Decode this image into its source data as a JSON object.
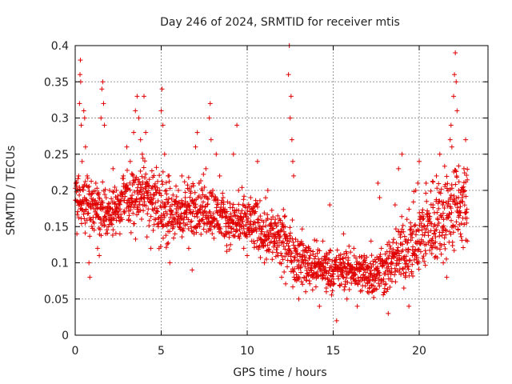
{
  "chart_data": {
    "type": "scatter",
    "title": "Day 246 of 2024, SRMTID for receiver mtis",
    "xlabel": "GPS time / hours",
    "ylabel": "SRMTID / TECUs",
    "xlim": [
      0,
      24
    ],
    "ylim": [
      0,
      0.4
    ],
    "x_ticks": [
      0,
      5,
      10,
      15,
      20
    ],
    "x_tick_labels": [
      "0",
      "5",
      "10",
      "15",
      "20"
    ],
    "y_ticks": [
      0,
      0.05,
      0.1,
      0.15,
      0.2,
      0.25,
      0.3,
      0.35,
      0.4
    ],
    "y_tick_labels": [
      "0",
      "0.05",
      "0.1",
      "0.15",
      "0.2",
      "0.25",
      "0.3",
      "0.35",
      "0.4"
    ],
    "grid": true,
    "marker": "plus",
    "color": "#e00000",
    "series": [
      {
        "name": "SRMTID",
        "envelope": {
          "x": [
            0.0,
            1.0,
            2.0,
            3.0,
            4.0,
            5.0,
            6.0,
            7.0,
            8.0,
            9.0,
            10.0,
            11.0,
            12.0,
            13.0,
            14.0,
            15.0,
            16.0,
            17.0,
            18.0,
            19.0,
            20.0,
            21.0,
            22.0,
            22.8
          ],
          "low": [
            0.13,
            0.12,
            0.12,
            0.13,
            0.13,
            0.1,
            0.11,
            0.12,
            0.12,
            0.11,
            0.1,
            0.09,
            0.07,
            0.05,
            0.05,
            0.05,
            0.05,
            0.04,
            0.04,
            0.05,
            0.05,
            0.07,
            0.08,
            0.1
          ],
          "high": [
            0.24,
            0.23,
            0.22,
            0.24,
            0.27,
            0.25,
            0.22,
            0.24,
            0.22,
            0.2,
            0.21,
            0.2,
            0.19,
            0.16,
            0.14,
            0.13,
            0.13,
            0.13,
            0.14,
            0.18,
            0.22,
            0.25,
            0.27,
            0.26
          ]
        },
        "points": [
          [
            0.1,
            0.14
          ],
          [
            0.15,
            0.2
          ],
          [
            0.2,
            0.22
          ],
          [
            0.25,
            0.32
          ],
          [
            0.28,
            0.36
          ],
          [
            0.3,
            0.38
          ],
          [
            0.32,
            0.35
          ],
          [
            0.35,
            0.29
          ],
          [
            0.4,
            0.24
          ],
          [
            0.5,
            0.31
          ],
          [
            0.55,
            0.3
          ],
          [
            0.6,
            0.26
          ],
          [
            0.7,
            0.22
          ],
          [
            0.8,
            0.1
          ],
          [
            0.85,
            0.08
          ],
          [
            1.0,
            0.18
          ],
          [
            1.2,
            0.21
          ],
          [
            1.3,
            0.12
          ],
          [
            1.4,
            0.11
          ],
          [
            1.5,
            0.3
          ],
          [
            1.55,
            0.34
          ],
          [
            1.6,
            0.35
          ],
          [
            1.65,
            0.32
          ],
          [
            1.7,
            0.29
          ],
          [
            1.9,
            0.17
          ],
          [
            2.0,
            0.2
          ],
          [
            2.2,
            0.23
          ],
          [
            2.4,
            0.2
          ],
          [
            2.6,
            0.14
          ],
          [
            2.8,
            0.22
          ],
          [
            3.0,
            0.26
          ],
          [
            3.1,
            0.16
          ],
          [
            3.2,
            0.24
          ],
          [
            3.4,
            0.28
          ],
          [
            3.5,
            0.31
          ],
          [
            3.6,
            0.33
          ],
          [
            3.7,
            0.3
          ],
          [
            3.8,
            0.27
          ],
          [
            3.9,
            0.25
          ],
          [
            4.0,
            0.33
          ],
          [
            4.1,
            0.28
          ],
          [
            4.2,
            0.21
          ],
          [
            4.4,
            0.12
          ],
          [
            4.6,
            0.16
          ],
          [
            4.8,
            0.2
          ],
          [
            5.0,
            0.31
          ],
          [
            5.05,
            0.34
          ],
          [
            5.1,
            0.29
          ],
          [
            5.2,
            0.25
          ],
          [
            5.3,
            0.2
          ],
          [
            5.4,
            0.22
          ],
          [
            5.5,
            0.1
          ],
          [
            5.6,
            0.17
          ],
          [
            5.8,
            0.14
          ],
          [
            6.0,
            0.2
          ],
          [
            6.2,
            0.22
          ],
          [
            6.4,
            0.19
          ],
          [
            6.6,
            0.12
          ],
          [
            6.8,
            0.09
          ],
          [
            7.0,
            0.26
          ],
          [
            7.1,
            0.28
          ],
          [
            7.2,
            0.21
          ],
          [
            7.4,
            0.17
          ],
          [
            7.6,
            0.23
          ],
          [
            7.8,
            0.3
          ],
          [
            7.85,
            0.32
          ],
          [
            7.9,
            0.27
          ],
          [
            8.0,
            0.2
          ],
          [
            8.2,
            0.25
          ],
          [
            8.4,
            0.22
          ],
          [
            8.6,
            0.19
          ],
          [
            8.8,
            0.14
          ],
          [
            9.0,
            0.15
          ],
          [
            9.2,
            0.25
          ],
          [
            9.4,
            0.29
          ],
          [
            9.5,
            0.2
          ],
          [
            9.6,
            0.16
          ],
          [
            9.8,
            0.12
          ],
          [
            10.0,
            0.11
          ],
          [
            10.2,
            0.19
          ],
          [
            10.4,
            0.17
          ],
          [
            10.6,
            0.24
          ],
          [
            10.8,
            0.14
          ],
          [
            11.0,
            0.1
          ],
          [
            11.2,
            0.2
          ],
          [
            11.4,
            0.16
          ],
          [
            11.6,
            0.13
          ],
          [
            11.8,
            0.11
          ],
          [
            12.0,
            0.08
          ],
          [
            12.2,
            0.15
          ],
          [
            12.4,
            0.36
          ],
          [
            12.45,
            0.4
          ],
          [
            12.5,
            0.3
          ],
          [
            12.55,
            0.33
          ],
          [
            12.6,
            0.27
          ],
          [
            12.65,
            0.24
          ],
          [
            12.7,
            0.22
          ],
          [
            12.8,
            0.12
          ],
          [
            13.0,
            0.05
          ],
          [
            13.2,
            0.1
          ],
          [
            13.4,
            0.06
          ],
          [
            13.6,
            0.12
          ],
          [
            13.8,
            0.08
          ],
          [
            14.0,
            0.1
          ],
          [
            14.2,
            0.04
          ],
          [
            14.4,
            0.13
          ],
          [
            14.6,
            0.06
          ],
          [
            14.8,
            0.18
          ],
          [
            15.0,
            0.07
          ],
          [
            15.2,
            0.02
          ],
          [
            15.4,
            0.1
          ],
          [
            15.6,
            0.14
          ],
          [
            15.8,
            0.05
          ],
          [
            16.0,
            0.09
          ],
          [
            16.2,
            0.12
          ],
          [
            16.4,
            0.04
          ],
          [
            16.6,
            0.08
          ],
          [
            16.8,
            0.11
          ],
          [
            17.0,
            0.06
          ],
          [
            17.2,
            0.13
          ],
          [
            17.4,
            0.09
          ],
          [
            17.6,
            0.21
          ],
          [
            17.7,
            0.19
          ],
          [
            17.8,
            0.12
          ],
          [
            18.0,
            0.07
          ],
          [
            18.2,
            0.03
          ],
          [
            18.4,
            0.1
          ],
          [
            18.6,
            0.18
          ],
          [
            18.8,
            0.23
          ],
          [
            19.0,
            0.25
          ],
          [
            19.2,
            0.08
          ],
          [
            19.4,
            0.04
          ],
          [
            19.6,
            0.11
          ],
          [
            19.8,
            0.2
          ],
          [
            20.0,
            0.24
          ],
          [
            20.2,
            0.16
          ],
          [
            20.4,
            0.21
          ],
          [
            20.6,
            0.13
          ],
          [
            20.8,
            0.18
          ],
          [
            21.0,
            0.22
          ],
          [
            21.2,
            0.25
          ],
          [
            21.4,
            0.1
          ],
          [
            21.6,
            0.08
          ],
          [
            21.8,
            0.27
          ],
          [
            21.85,
            0.29
          ],
          [
            21.9,
            0.26
          ],
          [
            22.0,
            0.33
          ],
          [
            22.05,
            0.36
          ],
          [
            22.1,
            0.39
          ],
          [
            22.15,
            0.35
          ],
          [
            22.2,
            0.31
          ],
          [
            22.3,
            0.2
          ],
          [
            22.4,
            0.14
          ],
          [
            22.5,
            0.19
          ],
          [
            22.6,
            0.23
          ],
          [
            22.7,
            0.27
          ],
          [
            22.75,
            0.17
          ],
          [
            22.8,
            0.13
          ]
        ]
      }
    ]
  }
}
